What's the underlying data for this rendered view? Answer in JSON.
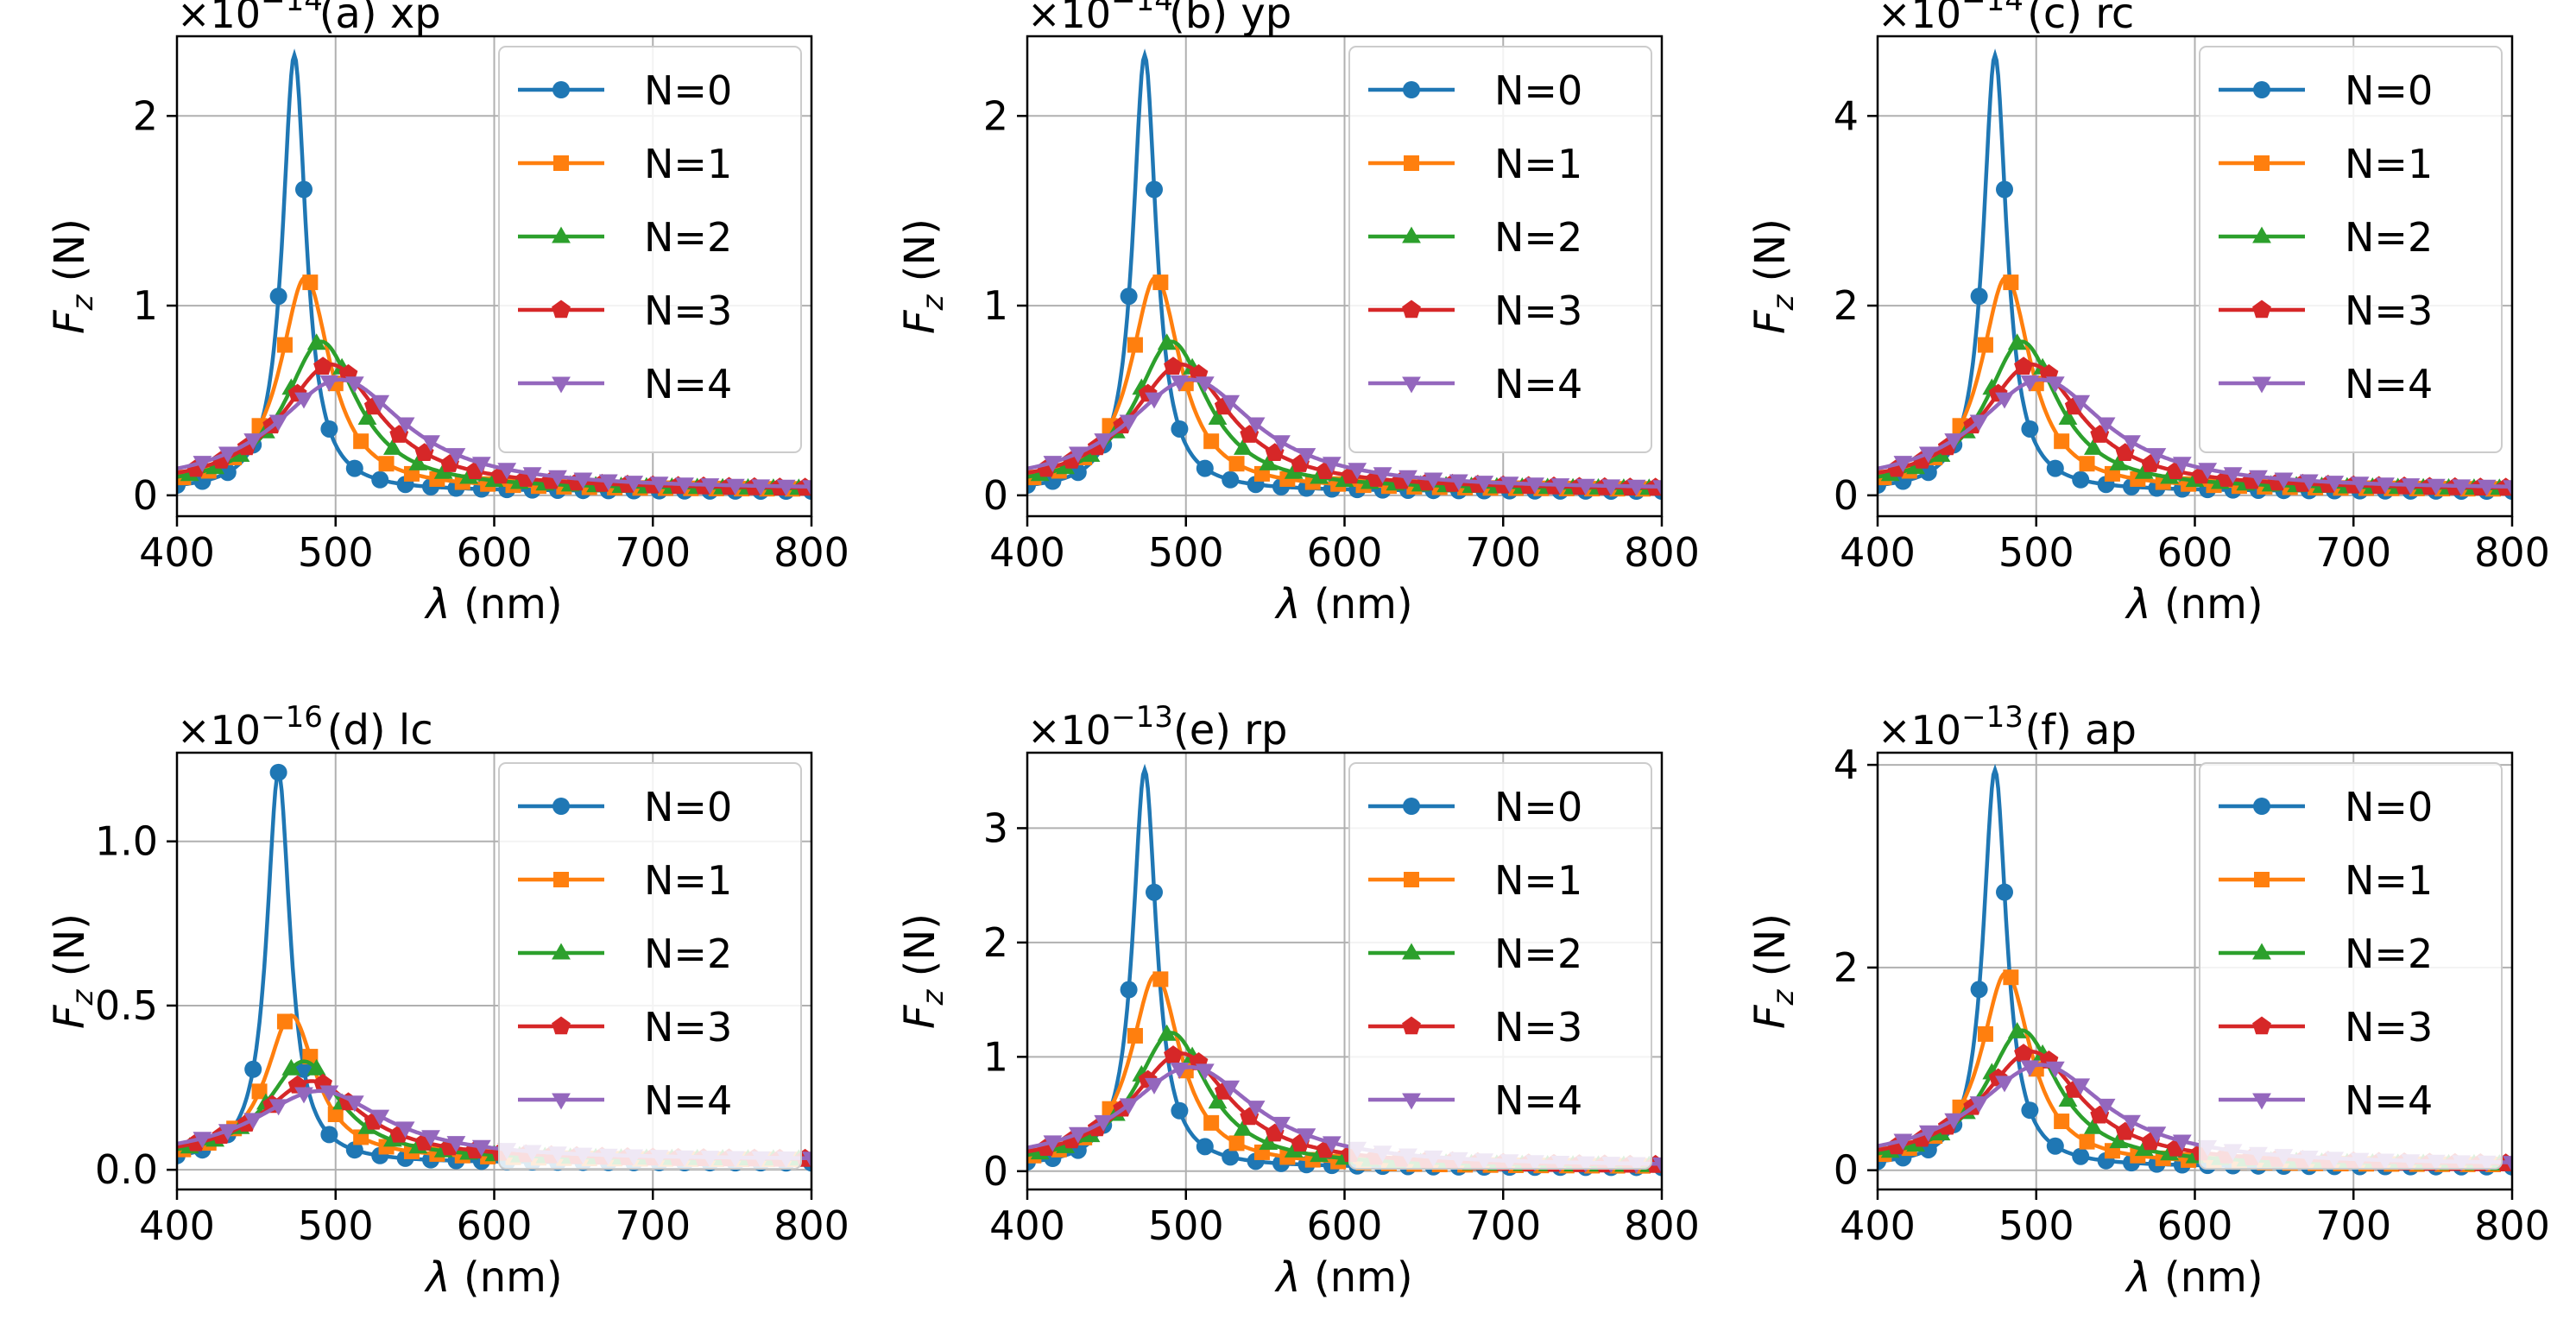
{
  "figure": {
    "name": "optical-force-spectra-grid",
    "series_names": [
      "N=0",
      "N=1",
      "N=2",
      "N=3",
      "N=4"
    ],
    "series_colors": [
      "#1f77b4",
      "#ff7f0e",
      "#2ca02c",
      "#d62728",
      "#9467bd"
    ],
    "series_markers": [
      "circle",
      "square",
      "triangle-up",
      "pentagon",
      "triangle-down"
    ],
    "legend_position": "upper right",
    "grid": true
  },
  "chart_data": [
    {
      "type": "line",
      "title": "(a) xp",
      "xlabel": "λ (nm)",
      "ylabel": "Fz (N)",
      "scale_label": "×10⁻¹⁴",
      "scale_base": "×10",
      "scale_exp": "−14",
      "xlim": [
        400,
        800
      ],
      "ylim": [
        -0.11,
        2.42
      ],
      "xticks": [
        400,
        500,
        600,
        700,
        800
      ],
      "xtick_labels": [
        "400",
        "500",
        "600",
        "700",
        "800"
      ],
      "yticks": [
        0,
        1,
        2
      ],
      "ytick_labels": [
        "0",
        "1",
        "2"
      ],
      "peaks": [
        {
          "name": "N=0",
          "center": 474,
          "width": 9,
          "amp": 2.3,
          "base": 0.02
        },
        {
          "name": "N=1",
          "center": 481,
          "width": 19,
          "amp": 1.12,
          "base": 0.03
        },
        {
          "name": "N=2",
          "center": 491,
          "width": 28,
          "amp": 0.78,
          "base": 0.03
        },
        {
          "name": "N=3",
          "center": 497,
          "width": 38,
          "amp": 0.66,
          "base": 0.03
        },
        {
          "name": "N=4",
          "center": 503,
          "width": 50,
          "amp": 0.58,
          "base": 0.03
        }
      ]
    },
    {
      "type": "line",
      "title": "(b) yp",
      "xlabel": "λ (nm)",
      "ylabel": "Fz (N)",
      "scale_label": "×10⁻¹⁴",
      "scale_base": "×10",
      "scale_exp": "−14",
      "xlim": [
        400,
        800
      ],
      "ylim": [
        -0.11,
        2.42
      ],
      "xticks": [
        400,
        500,
        600,
        700,
        800
      ],
      "xtick_labels": [
        "400",
        "500",
        "600",
        "700",
        "800"
      ],
      "yticks": [
        0,
        1,
        2
      ],
      "ytick_labels": [
        "0",
        "1",
        "2"
      ],
      "peaks": [
        {
          "name": "N=0",
          "center": 474,
          "width": 9,
          "amp": 2.3,
          "base": 0.02
        },
        {
          "name": "N=1",
          "center": 481,
          "width": 19,
          "amp": 1.12,
          "base": 0.03
        },
        {
          "name": "N=2",
          "center": 491,
          "width": 28,
          "amp": 0.78,
          "base": 0.03
        },
        {
          "name": "N=3",
          "center": 497,
          "width": 38,
          "amp": 0.66,
          "base": 0.03
        },
        {
          "name": "N=4",
          "center": 503,
          "width": 50,
          "amp": 0.58,
          "base": 0.03
        }
      ]
    },
    {
      "type": "line",
      "title": "(c) rc",
      "xlabel": "λ (nm)",
      "ylabel": "Fz (N)",
      "scale_label": "×10⁻¹⁴",
      "scale_base": "×10",
      "scale_exp": "−14",
      "xlim": [
        400,
        800
      ],
      "ylim": [
        -0.22,
        4.84
      ],
      "xticks": [
        400,
        500,
        600,
        700,
        800
      ],
      "xtick_labels": [
        "400",
        "500",
        "600",
        "700",
        "800"
      ],
      "yticks": [
        0,
        2,
        4
      ],
      "ytick_labels": [
        "0",
        "2",
        "4"
      ],
      "peaks": [
        {
          "name": "N=0",
          "center": 474,
          "width": 9,
          "amp": 4.6,
          "base": 0.04
        },
        {
          "name": "N=1",
          "center": 481,
          "width": 19,
          "amp": 2.24,
          "base": 0.06
        },
        {
          "name": "N=2",
          "center": 491,
          "width": 28,
          "amp": 1.56,
          "base": 0.06
        },
        {
          "name": "N=3",
          "center": 497,
          "width": 38,
          "amp": 1.32,
          "base": 0.06
        },
        {
          "name": "N=4",
          "center": 503,
          "width": 50,
          "amp": 1.16,
          "base": 0.06
        }
      ]
    },
    {
      "type": "line",
      "title": "(d) lc",
      "xlabel": "λ (nm)",
      "ylabel": "Fz (N)",
      "scale_label": "×10⁻¹⁶",
      "scale_base": "×10",
      "scale_exp": "−16",
      "xlim": [
        400,
        800
      ],
      "ylim": [
        -0.06,
        1.27
      ],
      "xticks": [
        400,
        500,
        600,
        700,
        800
      ],
      "xtick_labels": [
        "400",
        "500",
        "600",
        "700",
        "800"
      ],
      "yticks": [
        0,
        0.5,
        1.0
      ],
      "ytick_labels": [
        "0.0",
        "0.5",
        "1.0"
      ],
      "peaks": [
        {
          "name": "N=0",
          "center": 464,
          "width": 9,
          "amp": 1.19,
          "base": 0.02
        },
        {
          "name": "N=1",
          "center": 472,
          "width": 19,
          "amp": 0.44,
          "base": 0.03
        },
        {
          "name": "N=2",
          "center": 480,
          "width": 28,
          "amp": 0.3,
          "base": 0.03
        },
        {
          "name": "N=3",
          "center": 485,
          "width": 38,
          "amp": 0.24,
          "base": 0.03
        },
        {
          "name": "N=4",
          "center": 490,
          "width": 50,
          "amp": 0.21,
          "base": 0.03
        }
      ]
    },
    {
      "type": "line",
      "title": "(e) rp",
      "xlabel": "λ (nm)",
      "ylabel": "Fz (N)",
      "scale_label": "×10⁻¹³",
      "scale_base": "×10",
      "scale_exp": "−13",
      "xlim": [
        400,
        800
      ],
      "ylim": [
        -0.16,
        3.66
      ],
      "xticks": [
        400,
        500,
        600,
        700,
        800
      ],
      "xtick_labels": [
        "400",
        "500",
        "600",
        "700",
        "800"
      ],
      "yticks": [
        0,
        1,
        2,
        3
      ],
      "ytick_labels": [
        "0",
        "1",
        "2",
        "3"
      ],
      "peaks": [
        {
          "name": "N=0",
          "center": 474,
          "width": 9,
          "amp": 3.48,
          "base": 0.03
        },
        {
          "name": "N=1",
          "center": 481,
          "width": 19,
          "amp": 1.68,
          "base": 0.04
        },
        {
          "name": "N=2",
          "center": 491,
          "width": 28,
          "amp": 1.17,
          "base": 0.04
        },
        {
          "name": "N=3",
          "center": 497,
          "width": 38,
          "amp": 0.99,
          "base": 0.04
        },
        {
          "name": "N=4",
          "center": 503,
          "width": 50,
          "amp": 0.87,
          "base": 0.04
        }
      ]
    },
    {
      "type": "line",
      "title": "(f) ap",
      "xlabel": "λ (nm)",
      "ylabel": "Fz (N)",
      "scale_label": "×10⁻¹³",
      "scale_base": "×10",
      "scale_exp": "−13",
      "xlim": [
        400,
        800
      ],
      "ylim": [
        -0.19,
        4.12
      ],
      "xticks": [
        400,
        500,
        600,
        700,
        800
      ],
      "xtick_labels": [
        "400",
        "500",
        "600",
        "700",
        "800"
      ],
      "yticks": [
        0,
        2,
        4
      ],
      "ytick_labels": [
        "0",
        "2",
        "4"
      ],
      "peaks": [
        {
          "name": "N=0",
          "center": 474,
          "width": 9,
          "amp": 3.92,
          "base": 0.03
        },
        {
          "name": "N=1",
          "center": 481,
          "width": 19,
          "amp": 1.9,
          "base": 0.05
        },
        {
          "name": "N=2",
          "center": 491,
          "width": 28,
          "amp": 1.33,
          "base": 0.05
        },
        {
          "name": "N=3",
          "center": 497,
          "width": 38,
          "amp": 1.12,
          "base": 0.05
        },
        {
          "name": "N=4",
          "center": 503,
          "width": 50,
          "amp": 0.99,
          "base": 0.05
        }
      ]
    }
  ]
}
